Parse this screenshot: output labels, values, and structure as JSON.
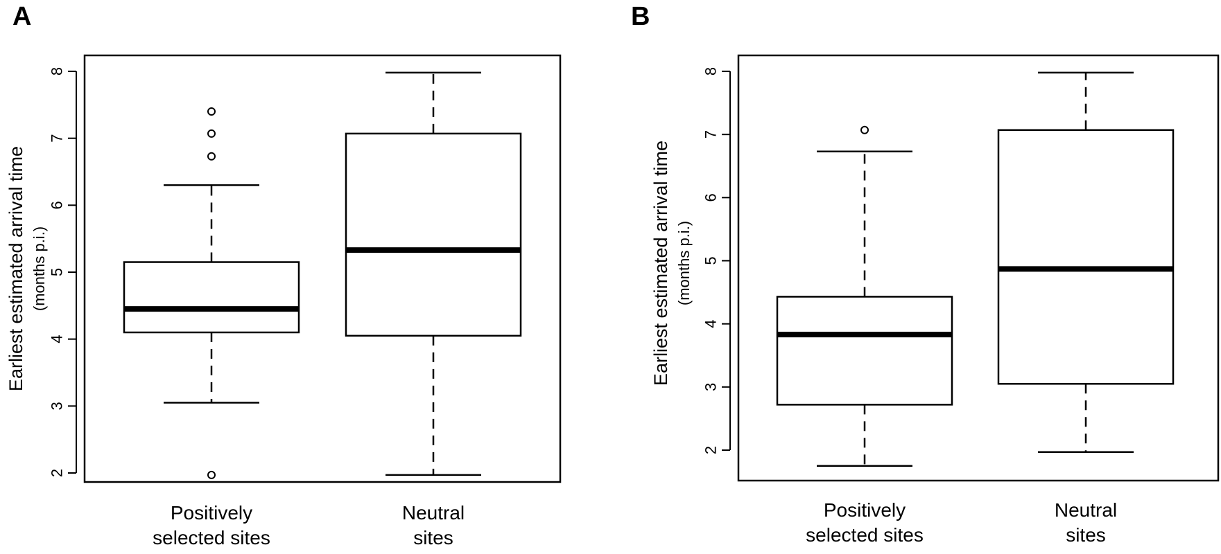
{
  "figure": {
    "panels": [
      {
        "letter": "A",
        "ylabel": "Earliest estimated arrival time",
        "ylabel_unit": "(months p.i.)",
        "categories": [
          [
            "Positively",
            "selected sites"
          ],
          [
            "Neutral",
            "sites"
          ]
        ]
      },
      {
        "letter": "B",
        "ylabel": "Earliest estimated arrival time",
        "ylabel_unit": "(months p.i.)",
        "categories": [
          [
            "Positively",
            "selected sites"
          ],
          [
            "Neutral",
            "sites"
          ]
        ]
      }
    ]
  },
  "chart_data": [
    {
      "type": "boxplot",
      "panel": "A",
      "ylabel": "Earliest estimated arrival time (months p.i.)",
      "ylim": [
        2,
        8
      ],
      "yticks": [
        2,
        3,
        4,
        5,
        6,
        7,
        8
      ],
      "grid": false,
      "boxes": [
        {
          "category": "Positively selected sites",
          "whisker_low": 3.05,
          "q1": 4.1,
          "median": 4.45,
          "q3": 5.15,
          "whisker_high": 6.3,
          "outliers": [
            1.97,
            6.73,
            7.07,
            7.4
          ]
        },
        {
          "category": "Neutral sites",
          "whisker_low": 1.97,
          "q1": 4.05,
          "median": 5.33,
          "q3": 7.07,
          "whisker_high": 7.98,
          "outliers": []
        }
      ]
    },
    {
      "type": "boxplot",
      "panel": "B",
      "ylabel": "Earliest estimated arrival time (months p.i.)",
      "ylim": [
        1.75,
        8
      ],
      "yticks": [
        2,
        3,
        4,
        5,
        6,
        7,
        8
      ],
      "grid": false,
      "boxes": [
        {
          "category": "Positively selected sites",
          "whisker_low": 1.75,
          "q1": 2.72,
          "median": 3.83,
          "q3": 4.43,
          "whisker_high": 6.73,
          "outliers": [
            7.07
          ]
        },
        {
          "category": "Neutral sites",
          "whisker_low": 1.97,
          "q1": 3.05,
          "median": 4.87,
          "q3": 7.07,
          "whisker_high": 7.98,
          "outliers": []
        }
      ]
    }
  ]
}
